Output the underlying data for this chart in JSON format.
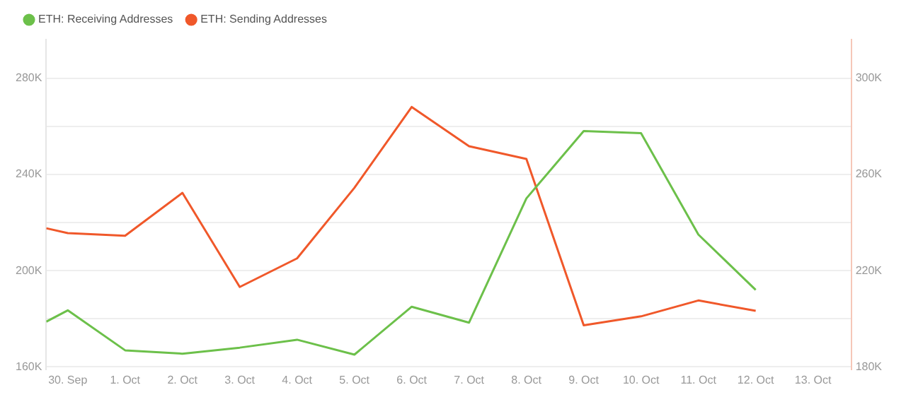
{
  "chart_data": {
    "type": "line",
    "x": [
      "--09-29T15:00",
      "--09-30",
      "--10-01",
      "--10-02",
      "--10-03",
      "--10-04",
      "--10-05",
      "--10-06",
      "--10-07",
      "--10-08",
      "--10-09",
      "--10-10",
      "--10-11",
      "--10-12"
    ],
    "series": [
      {
        "name": "ETH: Receiving Addresses",
        "color": "#6cc04a",
        "values": [
          178800,
          183500,
          166900,
          165500,
          168000,
          171300,
          165100,
          185000,
          178400,
          230000,
          258000,
          257100,
          215000,
          192000
        ]
      },
      {
        "name": "ETH: Sending Addresses",
        "color": "#f0582a",
        "axis": "y2",
        "values": [
          237600,
          235600,
          234500,
          252300,
          213200,
          225100,
          254400,
          288000,
          271700,
          266400,
          197300,
          201000,
          207600,
          203300
        ]
      }
    ],
    "xlim": [
      "--09-29T15:00",
      "--10-13T16:00"
    ],
    "xticks": [
      {
        "value": "--09-30",
        "label": "30. Sep"
      },
      {
        "value": "--10-01",
        "label": "1. Oct"
      },
      {
        "value": "--10-02",
        "label": "2. Oct"
      },
      {
        "value": "--10-03",
        "label": "3. Oct"
      },
      {
        "value": "--10-04",
        "label": "4. Oct"
      },
      {
        "value": "--10-05",
        "label": "5. Oct"
      },
      {
        "value": "--10-06",
        "label": "6. Oct"
      },
      {
        "value": "--10-07",
        "label": "7. Oct"
      },
      {
        "value": "--10-08",
        "label": "8. Oct"
      },
      {
        "value": "--10-09",
        "label": "9. Oct"
      },
      {
        "value": "--10-10",
        "label": "10. Oct"
      },
      {
        "value": "--10-11",
        "label": "11. Oct"
      },
      {
        "value": "--10-12",
        "label": "12. Oct"
      },
      {
        "value": "--10-13",
        "label": "13. Oct"
      }
    ],
    "ylim": [
      159000,
      296000
    ],
    "yticks": [
      {
        "value": 160000,
        "label": "160K"
      },
      {
        "value": 180000,
        "label": null
      },
      {
        "value": 200000,
        "label": "200K"
      },
      {
        "value": 220000,
        "label": null
      },
      {
        "value": 240000,
        "label": "240K"
      },
      {
        "value": 260000,
        "label": null
      },
      {
        "value": 280000,
        "label": "280K"
      }
    ],
    "y2lim": [
      179000,
      316000
    ],
    "y2ticks": [
      {
        "value": 180000,
        "label": "180K"
      },
      {
        "value": 220000,
        "label": "220K"
      },
      {
        "value": 260000,
        "label": "260K"
      },
      {
        "value": 300000,
        "label": "300K"
      }
    ],
    "grid": "y",
    "legend": "top left",
    "marker": "none",
    "line_style": "solid"
  }
}
